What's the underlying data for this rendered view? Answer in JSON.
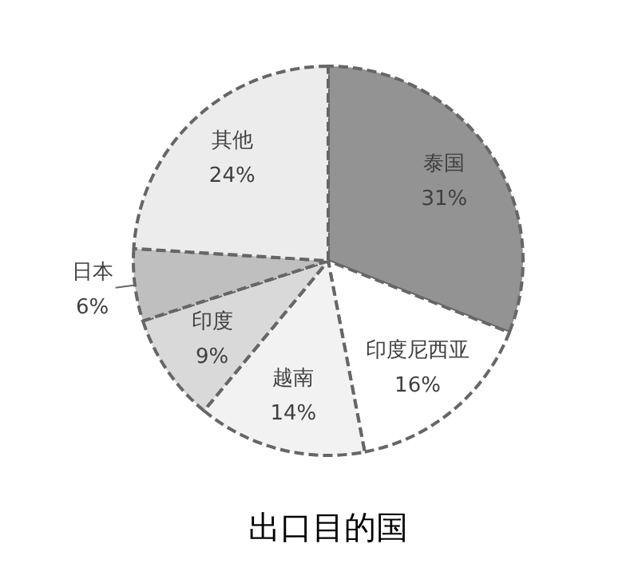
{
  "chart_data": {
    "type": "pie",
    "title": "出口目的国",
    "categories": [
      "泰国",
      "印度尼西亚",
      "越南",
      "印度",
      "日本",
      "其他"
    ],
    "values": [
      31,
      16,
      14,
      9,
      6,
      24
    ],
    "value_labels": [
      "31%",
      "16%",
      "14%",
      "9%",
      "6%",
      "24%"
    ],
    "colors": [
      "#939393",
      "#ffffff",
      "#f2f2f2",
      "#d9d9d9",
      "#bfbfbf",
      "#ececec"
    ]
  }
}
